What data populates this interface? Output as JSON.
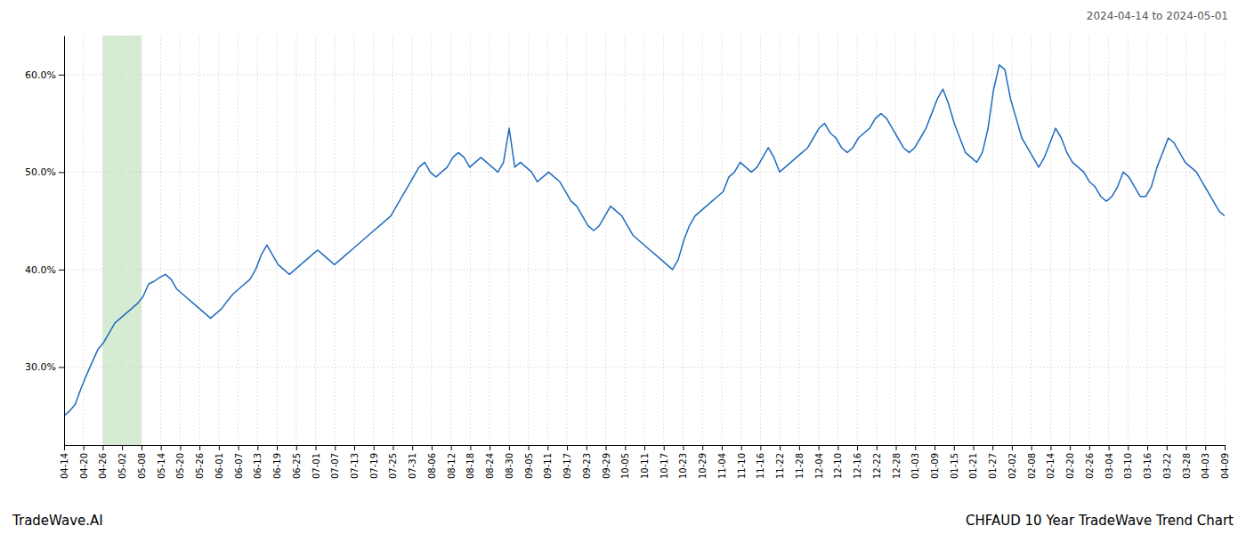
{
  "chart_data": {
    "type": "line",
    "title": "CHFAUD 10 Year TradeWave Trend Chart",
    "subtitle": "2024-04-14 to 2024-05-01",
    "annotations": [
      "TradeWave.AI"
    ],
    "color": "#1f6bbf",
    "grid": true,
    "highlight": {
      "start": 2,
      "end": 4,
      "color": "#d6ecd2"
    },
    "xlim": [
      0,
      60
    ],
    "xticks": [
      {
        "value": 0,
        "label": "04-14"
      },
      {
        "value": 1,
        "label": "04-20"
      },
      {
        "value": 2,
        "label": "04-26"
      },
      {
        "value": 3,
        "label": "05-02"
      },
      {
        "value": 4,
        "label": "05-08"
      },
      {
        "value": 5,
        "label": "05-14"
      },
      {
        "value": 6,
        "label": "05-20"
      },
      {
        "value": 7,
        "label": "05-26"
      },
      {
        "value": 8,
        "label": "06-01"
      },
      {
        "value": 9,
        "label": "06-07"
      },
      {
        "value": 10,
        "label": "06-13"
      },
      {
        "value": 11,
        "label": "06-19"
      },
      {
        "value": 12,
        "label": "06-25"
      },
      {
        "value": 13,
        "label": "07-01"
      },
      {
        "value": 14,
        "label": "07-07"
      },
      {
        "value": 15,
        "label": "07-13"
      },
      {
        "value": 16,
        "label": "07-19"
      },
      {
        "value": 17,
        "label": "07-25"
      },
      {
        "value": 18,
        "label": "07-31"
      },
      {
        "value": 19,
        "label": "08-06"
      },
      {
        "value": 20,
        "label": "08-12"
      },
      {
        "value": 21,
        "label": "08-18"
      },
      {
        "value": 22,
        "label": "08-24"
      },
      {
        "value": 23,
        "label": "08-30"
      },
      {
        "value": 24,
        "label": "09-05"
      },
      {
        "value": 25,
        "label": "09-11"
      },
      {
        "value": 26,
        "label": "09-17"
      },
      {
        "value": 27,
        "label": "09-23"
      },
      {
        "value": 28,
        "label": "09-29"
      },
      {
        "value": 29,
        "label": "10-05"
      },
      {
        "value": 30,
        "label": "10-11"
      },
      {
        "value": 31,
        "label": "10-17"
      },
      {
        "value": 32,
        "label": "10-23"
      },
      {
        "value": 33,
        "label": "10-29"
      },
      {
        "value": 34,
        "label": "11-04"
      },
      {
        "value": 35,
        "label": "11-10"
      },
      {
        "value": 36,
        "label": "11-16"
      },
      {
        "value": 37,
        "label": "11-22"
      },
      {
        "value": 38,
        "label": "11-28"
      },
      {
        "value": 39,
        "label": "12-04"
      },
      {
        "value": 40,
        "label": "12-10"
      },
      {
        "value": 41,
        "label": "12-16"
      },
      {
        "value": 42,
        "label": "12-22"
      },
      {
        "value": 43,
        "label": "12-28"
      },
      {
        "value": 44,
        "label": "01-03"
      },
      {
        "value": 45,
        "label": "01-09"
      },
      {
        "value": 46,
        "label": "01-15"
      },
      {
        "value": 47,
        "label": "01-21"
      },
      {
        "value": 48,
        "label": "01-27"
      },
      {
        "value": 49,
        "label": "02-02"
      },
      {
        "value": 50,
        "label": "02-08"
      },
      {
        "value": 51,
        "label": "02-14"
      },
      {
        "value": 52,
        "label": "02-20"
      },
      {
        "value": 53,
        "label": "02-26"
      },
      {
        "value": 54,
        "label": "03-04"
      },
      {
        "value": 55,
        "label": "03-10"
      },
      {
        "value": 56,
        "label": "03-16"
      },
      {
        "value": 57,
        "label": "03-22"
      },
      {
        "value": 58,
        "label": "03-28"
      },
      {
        "value": 59,
        "label": "04-03"
      },
      {
        "value": 60,
        "label": "04-09"
      }
    ],
    "ylim": [
      22.0,
      64.0
    ],
    "yticks": [
      {
        "value": 30.0,
        "label": "30.0%"
      },
      {
        "value": 40.0,
        "label": "40.0%"
      },
      {
        "value": 50.0,
        "label": "50.0%"
      },
      {
        "value": 60.0,
        "label": "60.0%"
      }
    ],
    "values": [
      25.0,
      25.5,
      26.2,
      27.8,
      29.2,
      30.5,
      31.8,
      32.5,
      33.5,
      34.5,
      35.0,
      35.5,
      36.0,
      36.5,
      37.2,
      38.5,
      38.8,
      39.2,
      39.5,
      39.0,
      38.0,
      37.5,
      37.0,
      36.5,
      36.0,
      35.5,
      35.0,
      35.5,
      36.0,
      36.8,
      37.5,
      38.0,
      38.5,
      39.0,
      40.0,
      41.5,
      42.5,
      41.5,
      40.5,
      40.0,
      39.5,
      40.0,
      40.5,
      41.0,
      41.5,
      42.0,
      41.5,
      41.0,
      40.5,
      41.0,
      41.5,
      42.0,
      42.5,
      43.0,
      43.5,
      44.0,
      44.5,
      45.0,
      45.5,
      46.5,
      47.5,
      48.5,
      49.5,
      50.5,
      51.0,
      50.0,
      49.5,
      50.0,
      50.5,
      51.5,
      52.0,
      51.5,
      50.5,
      51.0,
      51.5,
      51.0,
      50.5,
      50.0,
      51.0,
      54.5,
      50.5,
      51.0,
      50.5,
      50.0,
      49.0,
      49.5,
      50.0,
      49.5,
      49.0,
      48.0,
      47.0,
      46.5,
      45.5,
      44.5,
      44.0,
      44.5,
      45.5,
      46.5,
      46.0,
      45.5,
      44.5,
      43.5,
      43.0,
      42.5,
      42.0,
      41.5,
      41.0,
      40.5,
      40.0,
      41.0,
      43.0,
      44.5,
      45.5,
      46.0,
      46.5,
      47.0,
      47.5,
      48.0,
      49.5,
      50.0,
      51.0,
      50.5,
      50.0,
      50.5,
      51.5,
      52.5,
      51.5,
      50.0,
      50.5,
      51.0,
      51.5,
      52.0,
      52.5,
      53.5,
      54.5,
      55.0,
      54.0,
      53.5,
      52.5,
      52.0,
      52.5,
      53.5,
      54.0,
      54.5,
      55.5,
      56.0,
      55.5,
      54.5,
      53.5,
      52.5,
      52.0,
      52.5,
      53.5,
      54.5,
      56.0,
      57.5,
      58.5,
      57.0,
      55.0,
      53.5,
      52.0,
      51.5,
      51.0,
      52.0,
      54.5,
      58.5,
      61.0,
      60.5,
      57.5,
      55.5,
      53.5,
      52.5,
      51.5,
      50.5,
      51.5,
      53.0,
      54.5,
      53.5,
      52.0,
      51.0,
      50.5,
      50.0,
      49.0,
      48.5,
      47.5,
      47.0,
      47.5,
      48.5,
      50.0,
      49.5,
      48.5,
      47.5,
      47.5,
      48.5,
      50.5,
      52.0,
      53.5,
      53.0,
      52.0,
      51.0,
      50.5,
      50.0,
      49.0,
      48.0,
      47.0,
      46.0,
      45.5
    ]
  }
}
